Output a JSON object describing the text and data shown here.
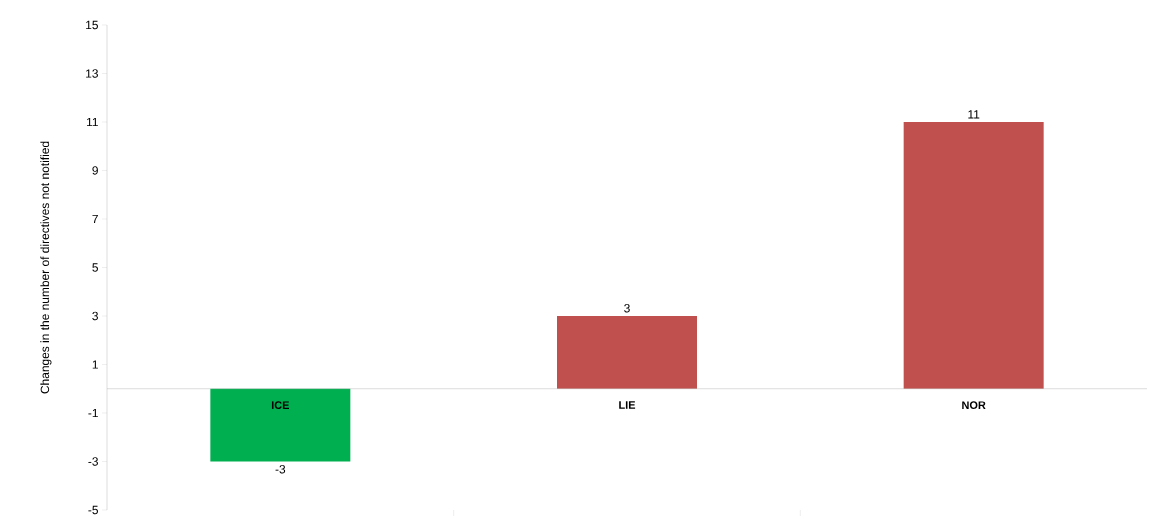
{
  "chart_data": {
    "type": "bar",
    "ylabel": "Changes in the number of directives not notified",
    "categories": [
      "ICE",
      "LIE",
      "NOR"
    ],
    "values": [
      -3,
      3,
      11
    ],
    "colors": [
      "#00b050",
      "#c0504d",
      "#c0504d"
    ],
    "ylim": [
      -5,
      15
    ],
    "yticks": [
      -5,
      -3,
      -1,
      1,
      3,
      5,
      7,
      9,
      11,
      13,
      15
    ],
    "data_labels": true
  }
}
